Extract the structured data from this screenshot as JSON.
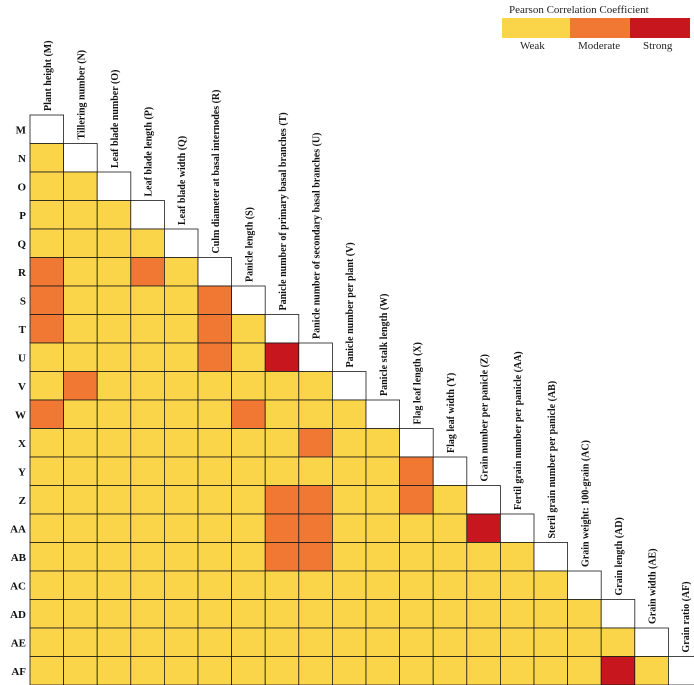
{
  "chart_data": {
    "type": "heatmap",
    "title": "",
    "row_labels": [
      "M",
      "N",
      "O",
      "P",
      "Q",
      "R",
      "S",
      "T",
      "U",
      "V",
      "W",
      "X",
      "Y",
      "Z",
      "AA",
      "AB",
      "AC",
      "AD",
      "AE",
      "AF"
    ],
    "column_labels": [
      "Plant height (M)",
      "Tillering number (N)",
      "Leaf blade number (O)",
      "Leaf blade length (P)",
      "Leaf blade width (Q)",
      "Culm diameter at basal internodes (R)",
      "Panicle length (S)",
      "Panicle number of primary basal branches (T)",
      "Panicle number of secondary basal branches (U)",
      "Panicle number per plant (V)",
      "Panicle stalk length (W)",
      "Flag leaf length (X)",
      "Flag leaf width (Y)",
      "Grain number per panicle (Z)",
      "Fertil grain number per panicle (AA)",
      "Steril grain number per panicle (AB)",
      "Grain weight: 100-grain (AC)",
      "Grain length (AD)",
      "Grain width (AE)",
      "Grain ratio (AF)"
    ],
    "levels": [
      "Weak",
      "Moderate",
      "Strong"
    ],
    "level_colors": [
      "#fad54a",
      "#f07832",
      "#c8161e"
    ],
    "diagonal_color": "#ffffff",
    "cells": [
      [],
      [
        0
      ],
      [
        0,
        0
      ],
      [
        0,
        0,
        0
      ],
      [
        0,
        0,
        0,
        0
      ],
      [
        1,
        0,
        0,
        1,
        0
      ],
      [
        1,
        0,
        0,
        0,
        0,
        1
      ],
      [
        1,
        0,
        0,
        0,
        0,
        1,
        0
      ],
      [
        0,
        0,
        0,
        0,
        0,
        1,
        0,
        2
      ],
      [
        0,
        1,
        0,
        0,
        0,
        0,
        0,
        0,
        0
      ],
      [
        1,
        0,
        0,
        0,
        0,
        0,
        1,
        0,
        0,
        0
      ],
      [
        0,
        0,
        0,
        0,
        0,
        0,
        0,
        0,
        1,
        0,
        0
      ],
      [
        0,
        0,
        0,
        0,
        0,
        0,
        0,
        0,
        0,
        0,
        0,
        1
      ],
      [
        0,
        0,
        0,
        0,
        0,
        0,
        0,
        1,
        1,
        0,
        0,
        1,
        0
      ],
      [
        0,
        0,
        0,
        0,
        0,
        0,
        0,
        1,
        1,
        0,
        0,
        0,
        0,
        2
      ],
      [
        0,
        0,
        0,
        0,
        0,
        0,
        0,
        1,
        1,
        0,
        0,
        0,
        0,
        0,
        0
      ],
      [
        0,
        0,
        0,
        0,
        0,
        0,
        0,
        0,
        0,
        0,
        0,
        0,
        0,
        0,
        0,
        0
      ],
      [
        0,
        0,
        0,
        0,
        0,
        0,
        0,
        0,
        0,
        0,
        0,
        0,
        0,
        0,
        0,
        0,
        0
      ],
      [
        0,
        0,
        0,
        0,
        0,
        0,
        0,
        0,
        0,
        0,
        0,
        0,
        0,
        0,
        0,
        0,
        0,
        0
      ],
      [
        0,
        0,
        0,
        0,
        0,
        0,
        0,
        0,
        0,
        0,
        0,
        0,
        0,
        0,
        0,
        0,
        0,
        2,
        0
      ]
    ],
    "legend": {
      "title": "Pearson Correlation Coefficient",
      "labels": [
        "Weak",
        "Moderate",
        "Strong"
      ],
      "placement": "top-right"
    }
  }
}
